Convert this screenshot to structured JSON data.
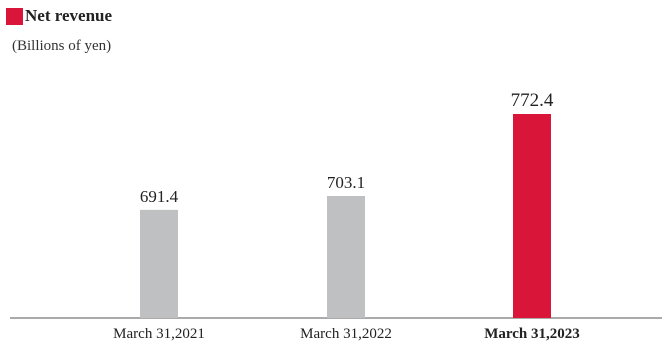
{
  "header": {
    "title": "Net revenue",
    "unit": "(Billions of yen)"
  },
  "colors": {
    "accent": "#d9163a",
    "bar_default": "#bfc0c2",
    "axis": "#555555"
  },
  "chart_data": {
    "type": "bar",
    "title": "Net revenue",
    "ylabel": "(Billions of yen)",
    "xlabel": "",
    "categories": [
      "March 31,2021",
      "March 31,2022",
      "March 31,2023"
    ],
    "values": [
      691.4,
      703.1,
      772.4
    ],
    "value_labels": [
      "691.4",
      "703.1",
      "772.4"
    ],
    "highlight_index": 2,
    "grid": false,
    "legend": "none"
  }
}
